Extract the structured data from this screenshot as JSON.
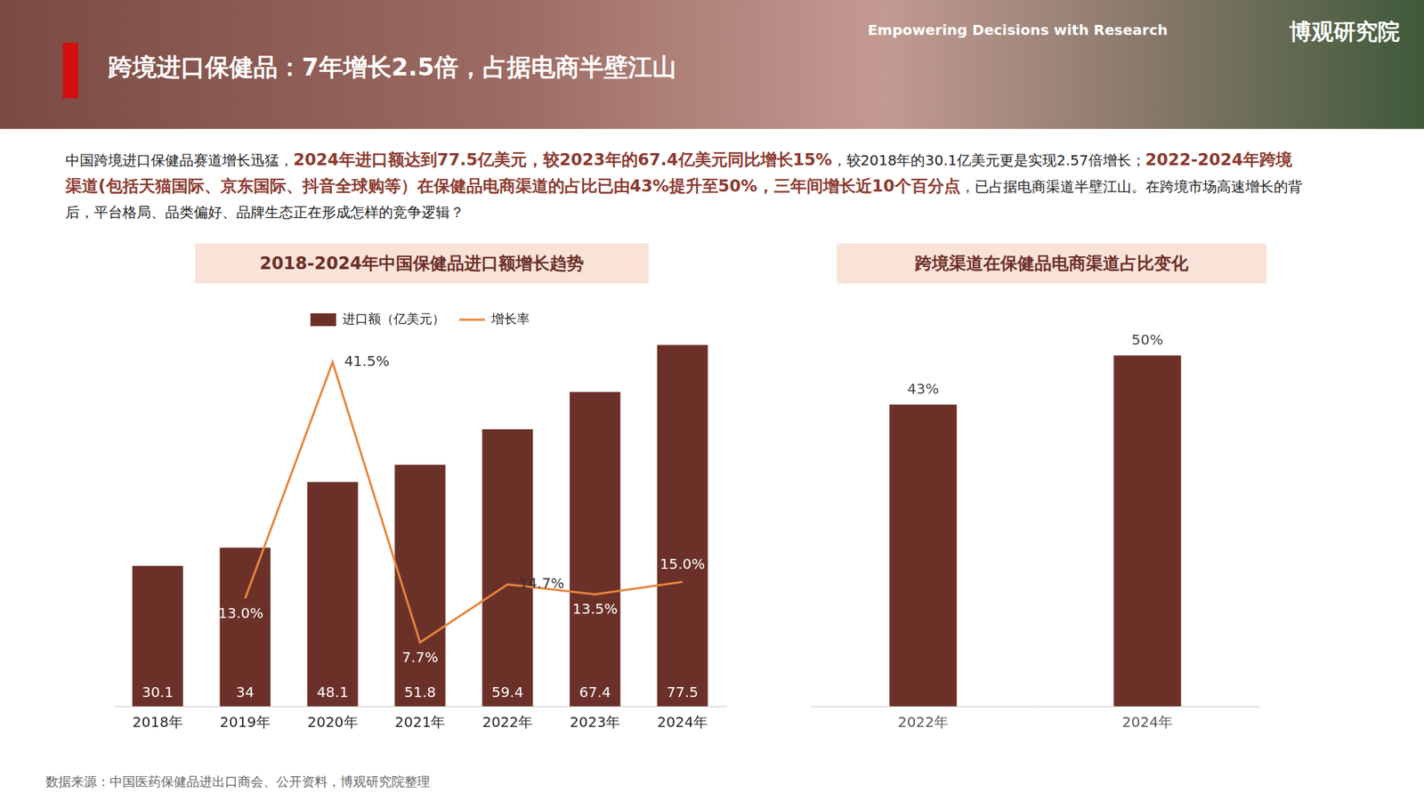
{
  "header": {
    "title": "跨境进口保健品：7年增长2.5倍，占据电商半壁江山",
    "tagline": "Empowering Decisions with Research",
    "brand": "博观研究院"
  },
  "intro": {
    "segments": [
      {
        "text": "中国跨境进口保健品赛道增长迅猛，",
        "emphasis": false
      },
      {
        "text": "2024年进口额达到77.5亿美元，较2023年的67.4亿美元同比增长15%",
        "emphasis": true
      },
      {
        "text": "，较2018年的30.1亿美元更是实现2.57倍增长；",
        "emphasis": false
      },
      {
        "text": "2022-2024年跨境渠道(包括天猫国际、京东国际、抖音全球购等）在保健品电商渠道的占比已由43%提升至50%，三年间增长近10个百分点",
        "emphasis": true
      },
      {
        "text": "，已占据电商渠道半壁江山。在跨境市场高速增长的背后，平台格局、品类偏好、品牌生态正在形成怎样的竞争逻辑？",
        "emphasis": false
      }
    ]
  },
  "chart_data": [
    {
      "type": "bar",
      "title": "2018-2024年中国保健品进口额增长趋势",
      "categories": [
        "2018年",
        "2019年",
        "2020年",
        "2021年",
        "2022年",
        "2023年",
        "2024年"
      ],
      "series": [
        {
          "name": "进口额（亿美元）",
          "type": "bar",
          "color": "#6b3129",
          "values": [
            30.1,
            34,
            48.1,
            51.8,
            59.4,
            67.4,
            77.5
          ],
          "data_labels": true
        },
        {
          "name": "增长率",
          "type": "line",
          "color": "#e8843a",
          "axis": "y2",
          "values": [
            null,
            13.0,
            41.5,
            7.7,
            14.7,
            13.5,
            15.0
          ],
          "value_labels": [
            null,
            "13.0%",
            "41.5%",
            "7.7%",
            "14.7%",
            "13.5%",
            "15.0%"
          ],
          "data_labels": true
        }
      ],
      "ylim": [
        0,
        80
      ],
      "y2lim": [
        0,
        45
      ],
      "legend": "top",
      "grid": false,
      "tick_labels": "x"
    },
    {
      "type": "bar",
      "title": "跨境渠道在保健品电商渠道占比变化",
      "categories": [
        "2022年",
        "2024年"
      ],
      "values": [
        43,
        50
      ],
      "value_labels": [
        "43%",
        "50%"
      ],
      "color": "#6b3129",
      "data_labels": true,
      "ylim": [
        0,
        55
      ],
      "grid": false,
      "tick_labels": "x"
    }
  ],
  "source": "数据来源：中国医药保健品进出口商会、公开资料，博观研究院整理"
}
